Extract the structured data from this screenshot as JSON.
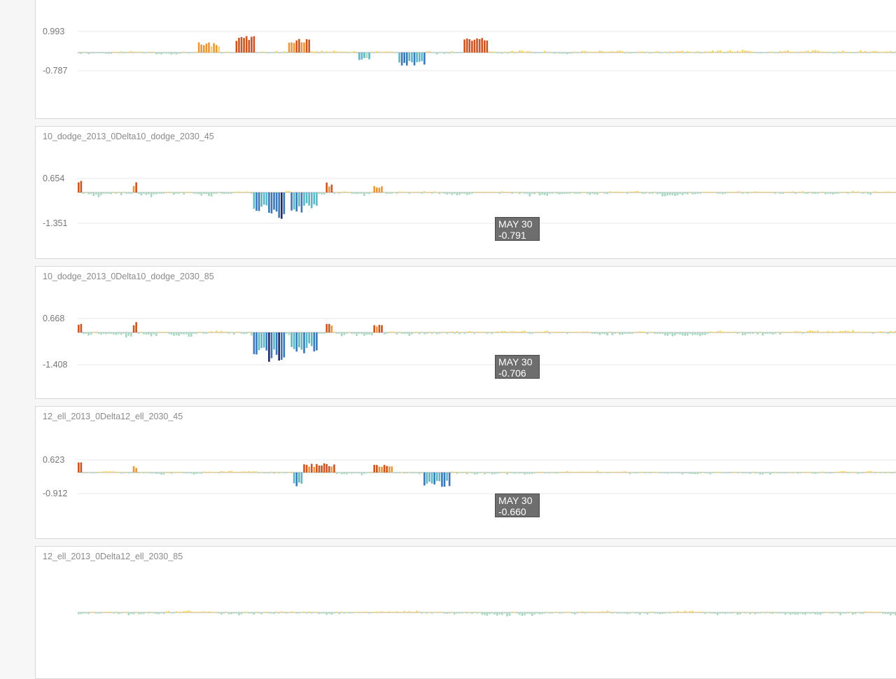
{
  "colors": {
    "strong_pos": "#8b3a1c",
    "pos_dark": "#cc5522",
    "pos_mid": "#e89838",
    "pos_light": "#f5d360",
    "neg_light": "#a8d8c0",
    "neg_mid": "#5ab8c8",
    "neg_dark": "#3a78b8",
    "strong_neg": "#1a2a6a",
    "grid": "#e9e9e9",
    "axis": "#b0b0b0",
    "label": "#777777"
  },
  "chart_data": [
    {
      "type": "bar",
      "title": "",
      "ytick_labels": [
        "0.993",
        "-0.787"
      ],
      "ylim": [
        -0.787,
        0.993
      ],
      "seed": 11,
      "events": [
        [
          48,
          56,
          0.5
        ],
        [
          63,
          70,
          0.9
        ],
        [
          84,
          92,
          0.75
        ],
        [
          112,
          116,
          -0.45
        ],
        [
          128,
          138,
          -0.75
        ],
        [
          154,
          163,
          0.7
        ]
      ],
      "tooltip": null
    },
    {
      "type": "bar",
      "title": "10_dodge_2013_0Delta10_dodge_2030_45",
      "ytick_labels": [
        "0.654",
        "-1.351"
      ],
      "ylim": [
        -1.351,
        0.654
      ],
      "seed": 23,
      "events": [
        [
          0,
          1,
          0.9
        ],
        [
          22,
          23,
          0.75
        ],
        [
          70,
          75,
          -0.7
        ],
        [
          76,
          82,
          -0.95
        ],
        [
          85,
          92,
          -0.7
        ],
        [
          91,
          95,
          -0.6
        ],
        [
          99,
          101,
          0.75
        ],
        [
          118,
          121,
          0.55
        ]
      ],
      "tooltip": {
        "label": "MAY 30",
        "value": "-0.791"
      }
    },
    {
      "type": "bar",
      "title": "10_dodge_2013_0Delta10_dodge_2030_85",
      "ytick_labels": [
        "0.668",
        "-1.408"
      ],
      "ylim": [
        -1.408,
        0.668
      ],
      "seed": 37,
      "events": [
        [
          0,
          1,
          0.9
        ],
        [
          22,
          23,
          0.75
        ],
        [
          70,
          75,
          -0.7
        ],
        [
          76,
          82,
          -0.95
        ],
        [
          85,
          92,
          -0.7
        ],
        [
          91,
          95,
          -0.6
        ],
        [
          99,
          101,
          0.75
        ],
        [
          118,
          121,
          0.55
        ]
      ],
      "tooltip": {
        "label": "MAY 30",
        "value": "-0.706"
      }
    },
    {
      "type": "bar",
      "title": "12_ell_2013_0Delta12_ell_2030_45",
      "ytick_labels": [
        "0.623",
        "-0.912"
      ],
      "ylim": [
        -0.912,
        0.623
      ],
      "seed": 51,
      "events": [
        [
          0,
          1,
          0.9
        ],
        [
          22,
          23,
          0.65
        ],
        [
          86,
          94,
          -0.7
        ],
        [
          90,
          102,
          0.75
        ],
        [
          118,
          125,
          0.65
        ],
        [
          138,
          148,
          -0.7
        ]
      ],
      "tooltip": {
        "label": "MAY 30",
        "value": "-0.660"
      }
    },
    {
      "type": "bar",
      "title": "12_ell_2013_0Delta12_ell_2030_85",
      "ytick_labels": [],
      "ylim": [
        -1,
        1
      ],
      "seed": 64,
      "events": [],
      "tooltip": null
    }
  ]
}
